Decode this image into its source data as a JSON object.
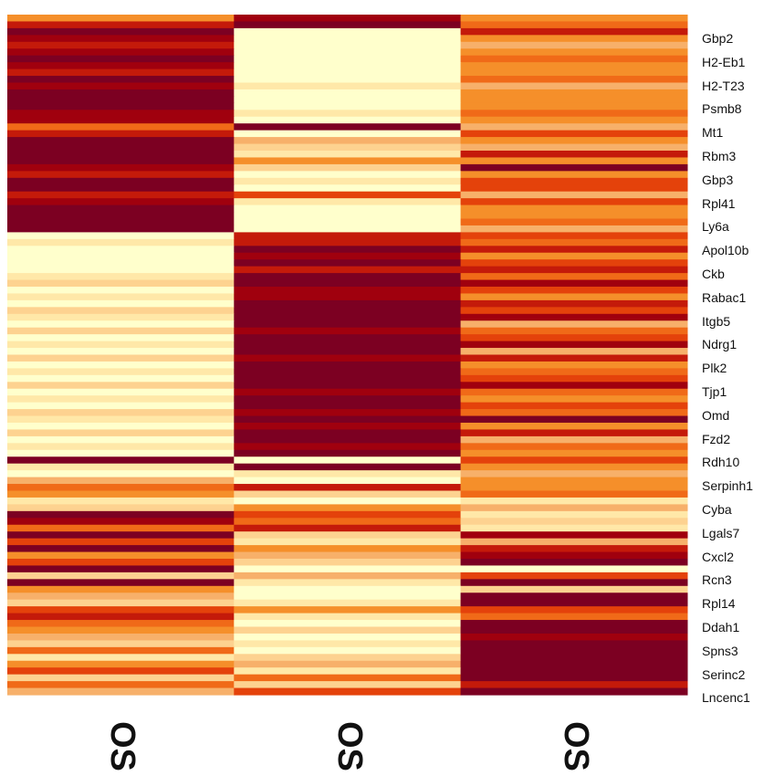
{
  "chart_data": {
    "type": "heatmap",
    "title": "",
    "xlabel": "",
    "ylabel": "",
    "colormap": [
      "#ffffcc",
      "#ffe8a8",
      "#fdd290",
      "#f7b06a",
      "#f58f2a",
      "#f06a18",
      "#e4420b",
      "#c41a0a",
      "#a0000e",
      "#7c0022"
    ],
    "x_labels": [
      "OS",
      "OS",
      "OS"
    ],
    "row_labels": [
      "Gbp2",
      "H2-Eb1",
      "H2-T23",
      "Psmb8",
      "Mt1",
      "Rbm3",
      "Gbp3",
      "Rpl41",
      "Ly6a",
      "Apol10b",
      "Ckb",
      "Rabac1",
      "Itgb5",
      "Ndrg1",
      "Plk2",
      "Tjp1",
      "Omd",
      "Fzd2",
      "Rdh10",
      "Serpinh1",
      "Cyba",
      "Lgals7",
      "Cxcl2",
      "Rcn3",
      "Rpl14",
      "Ddah1",
      "Spns3",
      "Serinc2",
      "Lncenc1"
    ],
    "value_range": [
      0,
      9
    ],
    "values": [
      [
        4,
        8,
        4
      ],
      [
        7,
        9,
        5
      ],
      [
        9,
        0,
        7
      ],
      [
        8,
        0,
        4
      ],
      [
        7,
        0,
        3
      ],
      [
        8,
        0,
        4
      ],
      [
        9,
        0,
        5
      ],
      [
        8,
        0,
        4
      ],
      [
        7,
        0,
        4
      ],
      [
        9,
        0,
        5
      ],
      [
        8,
        1,
        3
      ],
      [
        9,
        0,
        4
      ],
      [
        9,
        0,
        4
      ],
      [
        9,
        0,
        4
      ],
      [
        8,
        1,
        5
      ],
      [
        8,
        0,
        4
      ],
      [
        5,
        9,
        3
      ],
      [
        7,
        0,
        6
      ],
      [
        9,
        3,
        4
      ],
      [
        9,
        2,
        3
      ],
      [
        9,
        1,
        7
      ],
      [
        9,
        4,
        4
      ],
      [
        8,
        2,
        9
      ],
      [
        7,
        0,
        4
      ],
      [
        9,
        1,
        6
      ],
      [
        9,
        0,
        6
      ],
      [
        7,
        6,
        3
      ],
      [
        8,
        1,
        6
      ],
      [
        9,
        0,
        4
      ],
      [
        9,
        0,
        4
      ],
      [
        9,
        0,
        5
      ],
      [
        9,
        0,
        3
      ],
      [
        0,
        7,
        6
      ],
      [
        1,
        7,
        5
      ],
      [
        0,
        9,
        7
      ],
      [
        0,
        8,
        4
      ],
      [
        0,
        9,
        6
      ],
      [
        0,
        7,
        7
      ],
      [
        1,
        9,
        5
      ],
      [
        2,
        9,
        8
      ],
      [
        0,
        8,
        6
      ],
      [
        1,
        8,
        4
      ],
      [
        0,
        9,
        7
      ],
      [
        2,
        9,
        6
      ],
      [
        1,
        9,
        8
      ],
      [
        0,
        9,
        3
      ],
      [
        2,
        8,
        5
      ],
      [
        0,
        9,
        6
      ],
      [
        1,
        9,
        8
      ],
      [
        0,
        9,
        3
      ],
      [
        2,
        8,
        7
      ],
      [
        0,
        9,
        4
      ],
      [
        1,
        9,
        5
      ],
      [
        0,
        9,
        6
      ],
      [
        2,
        9,
        8
      ],
      [
        0,
        8,
        5
      ],
      [
        1,
        9,
        4
      ],
      [
        0,
        9,
        6
      ],
      [
        2,
        8,
        5
      ],
      [
        1,
        9,
        9
      ],
      [
        0,
        8,
        4
      ],
      [
        2,
        9,
        7
      ],
      [
        0,
        9,
        3
      ],
      [
        1,
        8,
        5
      ],
      [
        0,
        9,
        4
      ],
      [
        9,
        0,
        6
      ],
      [
        1,
        9,
        4
      ],
      [
        0,
        1,
        3
      ],
      [
        3,
        0,
        4
      ],
      [
        5,
        7,
        4
      ],
      [
        4,
        2,
        5
      ],
      [
        1,
        0,
        1
      ],
      [
        2,
        4,
        3
      ],
      [
        9,
        6,
        1
      ],
      [
        8,
        5,
        2
      ],
      [
        5,
        7,
        1
      ],
      [
        9,
        2,
        8
      ],
      [
        6,
        1,
        3
      ],
      [
        9,
        4,
        7
      ],
      [
        4,
        3,
        8
      ],
      [
        6,
        2,
        9
      ],
      [
        9,
        0,
        0
      ],
      [
        2,
        3,
        6
      ],
      [
        9,
        1,
        9
      ],
      [
        4,
        0,
        2
      ],
      [
        3,
        0,
        9
      ],
      [
        2,
        1,
        9
      ],
      [
        6,
        4,
        6
      ],
      [
        7,
        1,
        5
      ],
      [
        5,
        0,
        9
      ],
      [
        4,
        2,
        9
      ],
      [
        3,
        0,
        8
      ],
      [
        2,
        1,
        9
      ],
      [
        5,
        0,
        9
      ],
      [
        1,
        2,
        9
      ],
      [
        4,
        3,
        9
      ],
      [
        6,
        1,
        9
      ],
      [
        2,
        5,
        9
      ],
      [
        5,
        2,
        7
      ],
      [
        3,
        6,
        9
      ]
    ]
  }
}
